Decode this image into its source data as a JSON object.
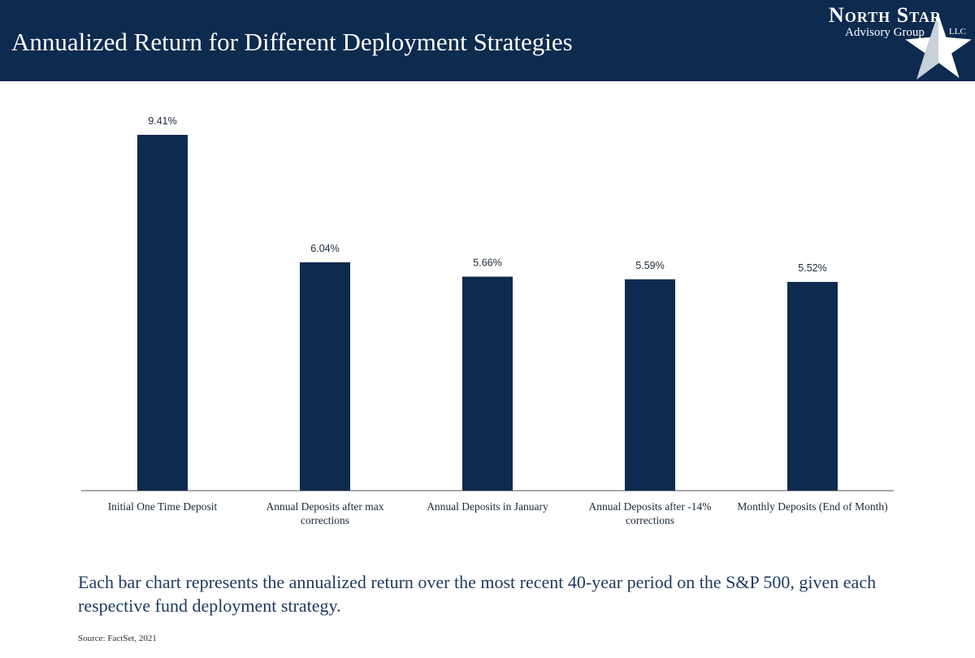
{
  "chart_data": {
    "type": "bar",
    "title": "Annualized Return for Different Deployment Strategies",
    "categories": [
      "Initial One Time Deposit",
      "Annual Deposits after max corrections",
      "Annual Deposits in January",
      "Annual Deposits after -14% corrections",
      "Monthly Deposits (End of Month)"
    ],
    "values": [
      9.41,
      6.04,
      5.66,
      5.59,
      5.52
    ],
    "value_labels": [
      "9.41%",
      "6.04%",
      "5.66%",
      "5.59%",
      "5.52%"
    ],
    "color": "#0f2a4f"
  },
  "logo": {
    "name": "North Star",
    "subtitle": "Advisory Group",
    "suffix": "LLC"
  },
  "footnote": "Each bar chart represents the annualized return over the most recent 40-year period on the S&P 500, given each respective fund deployment strategy.",
  "source": "Source: FactSet, 2021"
}
